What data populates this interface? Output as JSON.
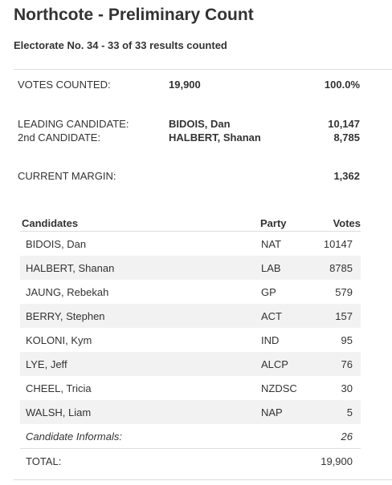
{
  "header": {
    "title": "Northcote - Preliminary Count",
    "electorate_line": "Electorate No. 34 - 33 of 33 results counted"
  },
  "summary": {
    "votes_counted": {
      "label": "VOTES COUNTED:",
      "value": "19,900",
      "figure": "100.0%"
    },
    "leading": {
      "label": "LEADING CANDIDATE:",
      "value": "BIDOIS, Dan",
      "figure": "10,147"
    },
    "second": {
      "label": "2nd CANDIDATE:",
      "value": "HALBERT, Shanan",
      "figure": "8,785"
    },
    "margin": {
      "label": "CURRENT MARGIN:",
      "figure": "1,362"
    }
  },
  "table": {
    "headers": {
      "candidates": "Candidates",
      "party": "Party",
      "votes": "Votes"
    },
    "rows": [
      {
        "name": "BIDOIS, Dan",
        "party": "NAT",
        "votes": "10147"
      },
      {
        "name": "HALBERT, Shanan",
        "party": "LAB",
        "votes": "8785"
      },
      {
        "name": "JAUNG, Rebekah",
        "party": "GP",
        "votes": "579"
      },
      {
        "name": "BERRY, Stephen",
        "party": "ACT",
        "votes": "157"
      },
      {
        "name": "KOLONI, Kym",
        "party": "IND",
        "votes": "95"
      },
      {
        "name": "LYE, Jeff",
        "party": "ALCP",
        "votes": "76"
      },
      {
        "name": "CHEEL, Tricia",
        "party": "NZDSC",
        "votes": "30"
      },
      {
        "name": "WALSH, Liam",
        "party": "NAP",
        "votes": "5"
      }
    ],
    "informals": {
      "label": "Candidate Informals:",
      "votes": "26"
    },
    "total": {
      "label": "TOTAL:",
      "votes": "19,900"
    }
  },
  "colors": {
    "text": "#333333",
    "row_alt": "#f2f2f2",
    "rule": "#dddddd"
  }
}
